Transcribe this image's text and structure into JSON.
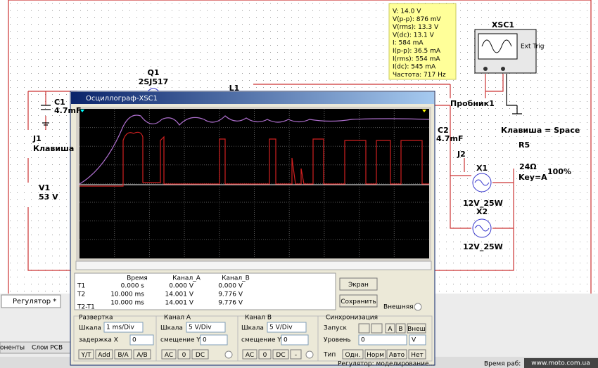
{
  "probe": {
    "lines": [
      "V: 14.0 V",
      "V(p-p): 876 mV",
      "V(rms): 13.3 V",
      "V(dc): 13.1 V",
      "I: 584 mA",
      "I(p-p): 36.5 mA",
      "I(rms): 554 mA",
      "I(dc): 545 mA",
      "Частота: 717 Hz"
    ]
  },
  "schematic": {
    "q1": "Q1",
    "q1_model": "2SJ517",
    "l1": "L1",
    "c1": "C1",
    "c1_value": "4.7mF",
    "j1": "J1",
    "j1_key": "Клавиша",
    "v1": "V1",
    "v1_value": "53 V",
    "c2": "C2",
    "c2_value": "4.7mF",
    "j2": "J2",
    "key_note": "Клавиша = Space",
    "r5": "R5",
    "r5_value": "24Ω",
    "r5_key": "Key=A",
    "r5_percent": "100%",
    "x1": "X1",
    "x1_model": "12V_25W",
    "x2": "X2",
    "x2_model": "12V_25W",
    "probe_name": "Пробник1",
    "xsc1": "XSC1",
    "ext_trig": "Ext Trig"
  },
  "scope": {
    "title": "Осциллограф-XSC1",
    "table": {
      "headers": [
        "Время",
        "Канал_A",
        "Канал_B"
      ],
      "rows": [
        {
          "label": "T1",
          "values": [
            "0.000 s",
            "0.000 V",
            "0.000 V"
          ]
        },
        {
          "label": "T2",
          "values": [
            "10.000 ms",
            "14.001 V",
            "9.776 V"
          ]
        },
        {
          "label": "T2-T1",
          "values": [
            "10.000 ms",
            "14.001 V",
            "9.776 V"
          ]
        }
      ]
    },
    "buttons": {
      "screen": "Экран",
      "save": "Сохранить"
    },
    "external": "Внешняя",
    "timebase": {
      "title": "Развертка",
      "scale_label": "Шкала",
      "scale": "1 ms/Div",
      "delay_label": "задержка X",
      "delay": "0",
      "buttons": [
        "Y/T",
        "Add",
        "B/A",
        "A/B"
      ]
    },
    "channel_a": {
      "title": "Канал A",
      "scale_label": "Шкала",
      "scale": "5 V/Div",
      "offset_label": "смещение Y",
      "offset": "0",
      "buttons": [
        "AC",
        "0",
        "DC"
      ]
    },
    "channel_b": {
      "title": "Канал B",
      "scale_label": "Шкала",
      "scale": "5 V/Div",
      "offset_label": "смещение Y",
      "offset": "0",
      "buttons": [
        "AC",
        "0",
        "DC",
        "-"
      ]
    },
    "trigger": {
      "title": "Синхронизация",
      "start_label": "Запуск",
      "source_buttons": [
        "A",
        "B",
        "Внеш"
      ],
      "level_label": "Уровень",
      "level": "0",
      "level_unit": "V",
      "type_label": "Тип",
      "type_buttons": [
        "Одн.",
        "Норм",
        "Авто",
        "Нет"
      ]
    }
  },
  "tabs": [
    "Регулятор *"
  ],
  "bottom_tabs": [
    "оненты",
    "Слои PCB"
  ],
  "status": {
    "sim": "Регулятор: моделирование...",
    "runtime": "Время раб:",
    "site": "www.moto.com.ua"
  }
}
